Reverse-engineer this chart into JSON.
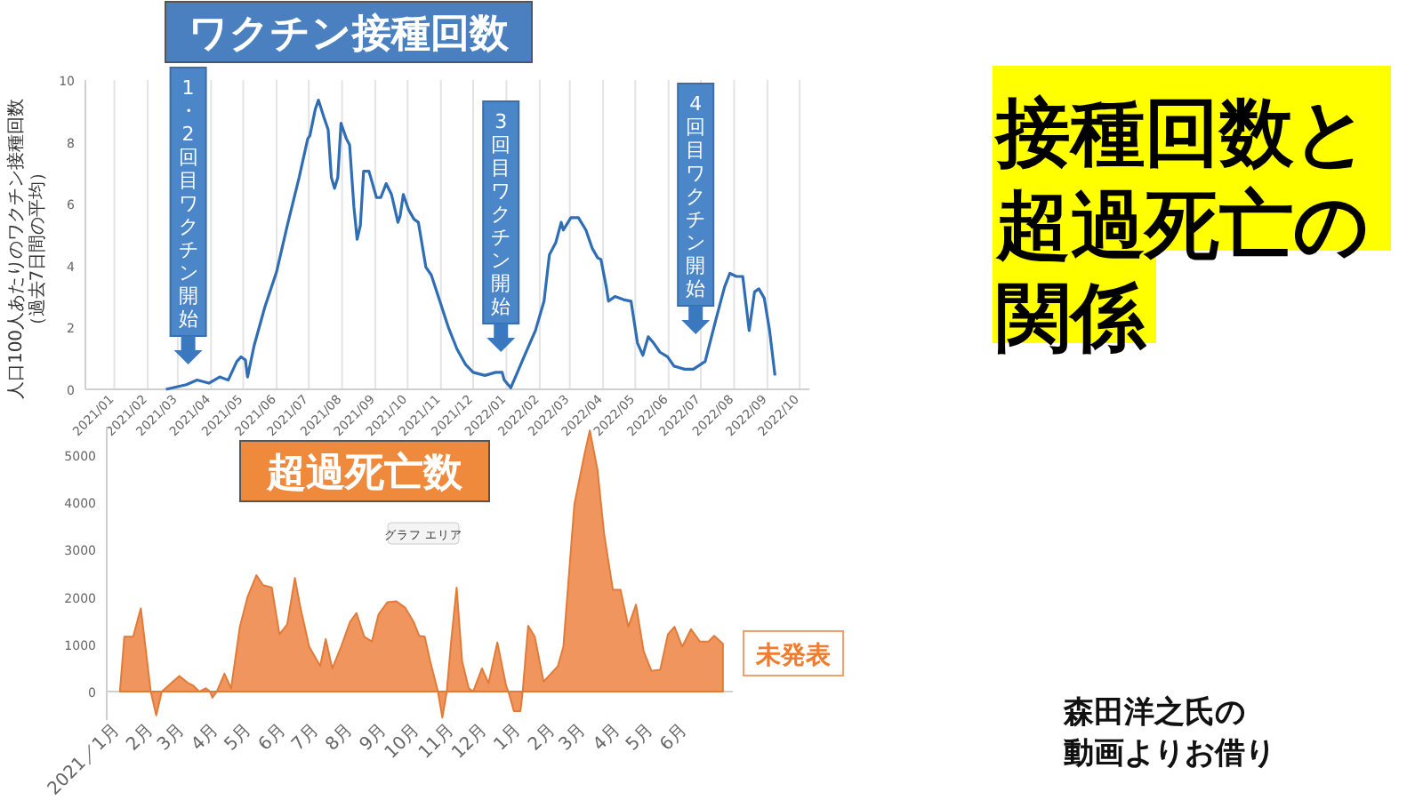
{
  "chart_data": [
    {
      "type": "line",
      "title": "ワクチン接種回数",
      "ylabel": "人口100人あたりのワクチン接種回数（過去7日間の平均）",
      "grid": "x",
      "color": "#2f6db5",
      "x": [
        "2021-02-18",
        "2021-03-09",
        "2021-03-19",
        "2021-03-30",
        "2021-04-09",
        "2021-04-17",
        "2021-04-25",
        "2021-04-29",
        "2021-05-03",
        "2021-05-05",
        "2021-05-11",
        "2021-05-21",
        "2021-06-01",
        "2021-06-11",
        "2021-06-22",
        "2021-06-30",
        "2021-07-02",
        "2021-07-07",
        "2021-07-10",
        "2021-07-15",
        "2021-07-19",
        "2021-07-22",
        "2021-07-25",
        "2021-07-28",
        "2021-07-31",
        "2021-08-05",
        "2021-08-08",
        "2021-08-12",
        "2021-08-15",
        "2021-08-18",
        "2021-08-21",
        "2021-08-26",
        "2021-09-02",
        "2021-09-06",
        "2021-09-11",
        "2021-09-16",
        "2021-09-22",
        "2021-09-24",
        "2021-09-27",
        "2021-10-02",
        "2021-10-07",
        "2021-10-11",
        "2021-10-18",
        "2021-10-23",
        "2021-10-31",
        "2021-11-08",
        "2021-11-16",
        "2021-11-24",
        "2021-12-01",
        "2021-12-12",
        "2021-12-22",
        "2021-12-28",
        "2021-12-30",
        "2022-01-05",
        "2022-01-10",
        "2022-01-18",
        "2022-01-28",
        "2022-02-05",
        "2022-02-10",
        "2022-02-16",
        "2022-02-21",
        "2022-02-23",
        "2022-03-02",
        "2022-03-09",
        "2022-03-16",
        "2022-03-22",
        "2022-03-27",
        "2022-03-30",
        "2022-04-04",
        "2022-04-06",
        "2022-04-12",
        "2022-04-20",
        "2022-04-27",
        "2022-05-03",
        "2022-05-08",
        "2022-05-13",
        "2022-05-18",
        "2022-05-24",
        "2022-05-31",
        "2022-06-06",
        "2022-06-16",
        "2022-06-24",
        "2022-07-05",
        "2022-07-15",
        "2022-07-23",
        "2022-07-28",
        "2022-08-03",
        "2022-08-09",
        "2022-08-15",
        "2022-08-20",
        "2022-08-24",
        "2022-08-29",
        "2022-09-03",
        "2022-09-08"
      ],
      "values": [
        0,
        0.15,
        0.3,
        0.2,
        0.4,
        0.3,
        0.9,
        1.05,
        0.95,
        0.4,
        1.4,
        2.65,
        3.8,
        5.3,
        6.85,
        8.1,
        8.2,
        9.05,
        9.35,
        8.8,
        8.4,
        6.85,
        6.5,
        6.85,
        8.6,
        8.1,
        7.9,
        5.9,
        4.85,
        5.3,
        7.05,
        7.05,
        6.2,
        6.2,
        6.65,
        6.3,
        5.4,
        5.6,
        6.3,
        5.8,
        5.5,
        5.4,
        3.95,
        3.7,
        2.85,
        2.0,
        1.3,
        0.8,
        0.55,
        0.45,
        0.55,
        0.55,
        0.3,
        0.05,
        0.45,
        1.1,
        1.9,
        2.85,
        4.35,
        4.75,
        5.4,
        5.15,
        5.55,
        5.55,
        5.15,
        4.55,
        4.25,
        4.2,
        3.3,
        2.85,
        3.0,
        2.9,
        2.85,
        1.5,
        1.1,
        1.7,
        1.5,
        1.2,
        1.05,
        0.75,
        0.65,
        0.65,
        0.9,
        2.25,
        3.3,
        3.75,
        3.65,
        3.65,
        1.9,
        3.15,
        3.25,
        2.95,
        1.9,
        0.45
      ],
      "xlim": [
        "2020-12-05",
        "2022-10-10"
      ],
      "ylim": [
        0,
        10
      ],
      "yticks": [
        0,
        2,
        4,
        6,
        8,
        10
      ],
      "xticks": [
        {
          "value": "2021-01-01",
          "label": "2021/01"
        },
        {
          "value": "2021-02-01",
          "label": "2021/02"
        },
        {
          "value": "2021-03-01",
          "label": "2021/03"
        },
        {
          "value": "2021-04-01",
          "label": "2021/04"
        },
        {
          "value": "2021-05-01",
          "label": "2021/05"
        },
        {
          "value": "2021-06-01",
          "label": "2021/06"
        },
        {
          "value": "2021-07-01",
          "label": "2021/07"
        },
        {
          "value": "2021-08-01",
          "label": "2021/08"
        },
        {
          "value": "2021-09-01",
          "label": "2021/09"
        },
        {
          "value": "2021-10-01",
          "label": "2021/10"
        },
        {
          "value": "2021-11-01",
          "label": "2021/11"
        },
        {
          "value": "2021-12-01",
          "label": "2021/12"
        },
        {
          "value": "2022-01-01",
          "label": "2022/01"
        },
        {
          "value": "2022-02-01",
          "label": "2022/02"
        },
        {
          "value": "2022-03-01",
          "label": "2022/03"
        },
        {
          "value": "2022-04-01",
          "label": "2022/04"
        },
        {
          "value": "2022-05-01",
          "label": "2022/05"
        },
        {
          "value": "2022-06-01",
          "label": "2022/06"
        },
        {
          "value": "2022-07-01",
          "label": "2022/07"
        },
        {
          "value": "2022-08-01",
          "label": "2022/08"
        },
        {
          "value": "2022-09-01",
          "label": "2022/09"
        },
        {
          "value": "2022-10-01",
          "label": "2022/10"
        }
      ],
      "annotations": [
        "1・2回目ワクチン開始",
        "3回目ワクチン開始",
        "4回目ワクチン開始"
      ]
    },
    {
      "type": "area",
      "title": "超過死亡数",
      "color": "#f0955e",
      "x": [
        "2021-01-01",
        "2021-01-05",
        "2021-01-13",
        "2021-01-20",
        "2021-01-29",
        "2021-02-03",
        "2021-02-08",
        "2021-02-24",
        "2021-03-04",
        "2021-03-09",
        "2021-03-14",
        "2021-03-20",
        "2021-03-24",
        "2021-03-26",
        "2021-03-30",
        "2021-04-06",
        "2021-04-12",
        "2021-04-20",
        "2021-04-27",
        "2021-05-05",
        "2021-05-11",
        "2021-05-19",
        "2021-05-26",
        "2021-06-02",
        "2021-06-09",
        "2021-06-14",
        "2021-06-22",
        "2021-07-02",
        "2021-07-07",
        "2021-07-13",
        "2021-07-21",
        "2021-07-29",
        "2021-08-04",
        "2021-08-11",
        "2021-08-18",
        "2021-08-24",
        "2021-09-01",
        "2021-09-09",
        "2021-09-17",
        "2021-09-25",
        "2021-09-30",
        "2021-10-05",
        "2021-10-10",
        "2021-10-17",
        "2021-10-21",
        "2021-10-25",
        "2021-10-29",
        "2021-11-03",
        "2021-11-08",
        "2021-11-14",
        "2021-11-18",
        "2021-11-26",
        "2021-12-02",
        "2021-12-10",
        "2021-12-18",
        "2021-12-20",
        "2021-12-25",
        "2021-12-31",
        "2022-01-02",
        "2022-01-07",
        "2022-01-13",
        "2022-01-21",
        "2022-02-03",
        "2022-02-08",
        "2022-02-18",
        "2022-02-27",
        "2022-03-04",
        "2022-03-11",
        "2022-03-17",
        "2022-03-25",
        "2022-04-01",
        "2022-04-08",
        "2022-04-15",
        "2022-04-22",
        "2022-04-29",
        "2022-05-07",
        "2022-05-14",
        "2022-05-20",
        "2022-05-27",
        "2022-06-04",
        "2022-06-12",
        "2022-06-20",
        "2022-06-25",
        "2022-07-03"
      ],
      "values": [
        0,
        1160,
        1160,
        1760,
        0,
        -500,
        0,
        330,
        180,
        120,
        0,
        70,
        0,
        -130,
        0,
        380,
        70,
        1370,
        2000,
        2460,
        2250,
        2200,
        1210,
        1420,
        2400,
        1780,
        950,
        540,
        1110,
        490,
        950,
        1470,
        1660,
        1160,
        1060,
        1630,
        1890,
        1910,
        1780,
        1470,
        1180,
        1160,
        640,
        0,
        -550,
        0,
        1060,
        2200,
        640,
        70,
        0,
        490,
        180,
        1040,
        120,
        0,
        -410,
        -410,
        0,
        1390,
        1160,
        210,
        540,
        950,
        3960,
        5000,
        5520,
        4690,
        3340,
        2150,
        2150,
        1370,
        1840,
        850,
        440,
        460,
        1210,
        1370,
        950,
        1320,
        1060,
        1060,
        1180,
        1010
      ],
      "xlim": [
        "2020-12-20",
        "2022-07-12"
      ],
      "ylim": [
        -600,
        5600
      ],
      "yticks": [
        0,
        1000,
        2000,
        3000,
        4000,
        5000
      ],
      "xticks": [
        {
          "value": "2021-01-01",
          "label": "2021／1月"
        },
        {
          "value": "2021-02-01",
          "label": "2月"
        },
        {
          "value": "2021-03-01",
          "label": "3月"
        },
        {
          "value": "2021-04-01",
          "label": "4月"
        },
        {
          "value": "2021-05-01",
          "label": "5月"
        },
        {
          "value": "2021-06-01",
          "label": "6月"
        },
        {
          "value": "2021-07-01",
          "label": "7月"
        },
        {
          "value": "2021-08-01",
          "label": "8月"
        },
        {
          "value": "2021-09-01",
          "label": "9月"
        },
        {
          "value": "2021-10-01",
          "label": "10月"
        },
        {
          "value": "2021-11-01",
          "label": "11月"
        },
        {
          "value": "2021-12-01",
          "label": "12月"
        },
        {
          "value": "2022-01-01",
          "label": "1月"
        },
        {
          "value": "2022-02-01",
          "label": "2月"
        },
        {
          "value": "2022-03-01",
          "label": "3月"
        },
        {
          "value": "2022-04-01",
          "label": "4月"
        },
        {
          "value": "2022-05-01",
          "label": "5月"
        },
        {
          "value": "2022-06-01",
          "label": "6月"
        }
      ],
      "annotations": [
        "グラフ エリア",
        "未発表"
      ]
    },
    {
      "type": "other",
      "title": "接種回数と超過死亡の関係",
      "annotations": [
        "森田洋之氏の動画よりお借り"
      ]
    }
  ]
}
